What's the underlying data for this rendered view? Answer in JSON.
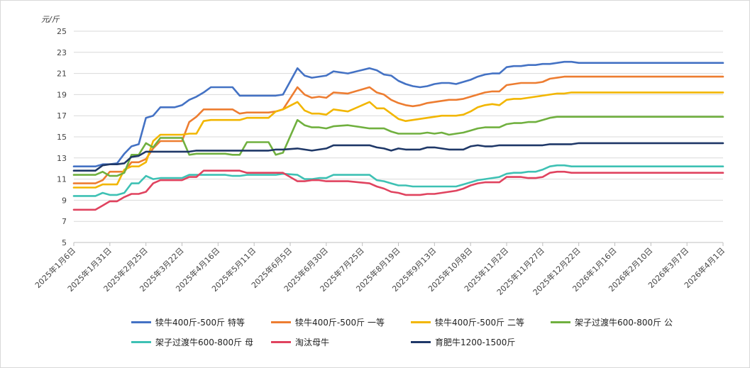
{
  "chart_data": {
    "type": "line",
    "unit_label": "元/斤",
    "ylim": [
      5,
      25
    ],
    "yticks": [
      5,
      7,
      9,
      11,
      13,
      15,
      17,
      19,
      21,
      23,
      25
    ],
    "grid": "horizontal",
    "legend_position": "bottom",
    "x_tick_labels": [
      "2025年1月6日",
      "2025年1月31日",
      "2025年2月25日",
      "2025年3月22日",
      "2025年4月16日",
      "2025年5月11日",
      "2025年6月5日",
      "2025年6月30日",
      "2025年7月25日",
      "2025年8月19日",
      "2025年9月13日",
      "2025年10月8日",
      "2025年11月2日",
      "2025年11月27日",
      "2025年12月22日",
      "2026年1月16日",
      "2026年2月10日",
      "2026年3月7日",
      "2026年4月1日"
    ],
    "x_index": [
      0,
      3,
      4,
      5,
      6,
      7,
      8,
      9,
      10,
      11,
      12,
      14,
      15,
      16,
      17,
      18,
      19,
      21,
      22,
      23,
      24,
      26,
      27,
      28,
      29,
      31,
      32,
      33,
      34,
      35,
      36,
      38,
      41,
      42,
      43,
      44,
      45,
      46,
      47,
      48,
      49,
      50,
      51,
      52,
      53,
      54,
      55,
      56,
      57,
      58,
      59,
      60,
      61,
      62,
      63,
      64,
      65,
      66,
      67,
      68,
      69,
      70,
      71,
      72,
      73,
      74,
      75,
      76,
      77,
      78,
      79,
      80,
      81,
      82,
      83,
      84,
      85,
      86,
      87,
      88,
      89,
      90
    ],
    "series": [
      {
        "name": "犊牛400斤-500斤 特等",
        "color": "#4472c4",
        "values": [
          12.2,
          12.2,
          12.4,
          12.4,
          12.5,
          13.4,
          14.1,
          14.3,
          16.8,
          17.0,
          17.8,
          17.8,
          18.0,
          18.5,
          18.8,
          19.2,
          19.7,
          19.7,
          19.7,
          18.9,
          18.9,
          18.9,
          18.9,
          18.9,
          19.0,
          21.5,
          20.8,
          20.6,
          20.7,
          20.8,
          21.2,
          21.0,
          21.5,
          21.3,
          20.9,
          20.8,
          20.3,
          20.0,
          19.8,
          19.7,
          19.8,
          20.0,
          20.1,
          20.1,
          20.0,
          20.2,
          20.4,
          20.7,
          20.9,
          21.0,
          21.0,
          21.6,
          21.7,
          21.7,
          21.8,
          21.8,
          21.9,
          21.9,
          22.0,
          22.1,
          22.1,
          22.0,
          22.0,
          22.0,
          22.0,
          22.0,
          22.0,
          22.0,
          22.0,
          22.0,
          22.0,
          22.0,
          22.0,
          22.0,
          22.0,
          22.0,
          22.0,
          22.0,
          22.0,
          22.0,
          22.0,
          22.0
        ]
      },
      {
        "name": "犊牛400斤-500斤 一等",
        "color": "#ed7d31",
        "values": [
          10.6,
          10.6,
          10.9,
          11.7,
          11.7,
          11.7,
          12.6,
          12.6,
          12.9,
          13.9,
          14.6,
          14.6,
          14.6,
          16.4,
          16.9,
          17.6,
          17.6,
          17.6,
          17.6,
          17.2,
          17.3,
          17.3,
          17.3,
          17.4,
          17.6,
          19.7,
          19.0,
          18.7,
          18.8,
          18.7,
          19.2,
          19.1,
          19.7,
          19.2,
          19.0,
          18.5,
          18.2,
          18.0,
          17.9,
          18.0,
          18.2,
          18.3,
          18.4,
          18.5,
          18.5,
          18.6,
          18.8,
          19.0,
          19.2,
          19.3,
          19.3,
          19.9,
          20.0,
          20.1,
          20.1,
          20.1,
          20.2,
          20.5,
          20.6,
          20.7,
          20.7,
          20.7,
          20.7,
          20.7,
          20.7,
          20.7,
          20.7,
          20.7,
          20.7,
          20.7,
          20.7,
          20.7,
          20.7,
          20.7,
          20.7,
          20.7,
          20.7,
          20.7,
          20.7,
          20.7,
          20.7,
          20.7
        ]
      },
      {
        "name": "犊牛400斤-500斤 二等",
        "color": "#f2b600",
        "values": [
          10.2,
          10.2,
          10.5,
          10.5,
          10.5,
          11.9,
          12.2,
          12.2,
          12.6,
          14.6,
          15.2,
          15.2,
          15.2,
          15.3,
          15.3,
          16.5,
          16.6,
          16.6,
          16.6,
          16.6,
          16.8,
          16.8,
          16.8,
          17.4,
          17.6,
          18.3,
          17.5,
          17.2,
          17.2,
          17.1,
          17.6,
          17.4,
          18.3,
          17.7,
          17.7,
          17.2,
          16.7,
          16.5,
          16.6,
          16.7,
          16.8,
          16.9,
          17.0,
          17.0,
          17.0,
          17.1,
          17.4,
          17.8,
          18.0,
          18.1,
          18.0,
          18.5,
          18.6,
          18.6,
          18.7,
          18.8,
          18.9,
          19.0,
          19.1,
          19.1,
          19.2,
          19.2,
          19.2,
          19.2,
          19.2,
          19.2,
          19.2,
          19.2,
          19.2,
          19.2,
          19.2,
          19.2,
          19.2,
          19.2,
          19.2,
          19.2,
          19.2,
          19.2,
          19.2,
          19.2,
          19.2,
          19.2
        ]
      },
      {
        "name": "架子过渡牛600-800斤 公",
        "color": "#70b03f",
        "values": [
          11.4,
          11.4,
          11.7,
          11.3,
          11.3,
          11.6,
          13.3,
          13.3,
          14.4,
          14.0,
          14.9,
          14.9,
          14.9,
          13.3,
          13.4,
          13.4,
          13.4,
          13.4,
          13.3,
          13.3,
          14.5,
          14.5,
          14.5,
          13.3,
          13.5,
          16.6,
          16.1,
          15.9,
          15.9,
          15.8,
          16.0,
          16.1,
          15.8,
          15.8,
          15.8,
          15.5,
          15.3,
          15.3,
          15.3,
          15.3,
          15.4,
          15.3,
          15.4,
          15.2,
          15.3,
          15.4,
          15.6,
          15.8,
          15.9,
          15.9,
          15.9,
          16.2,
          16.3,
          16.3,
          16.4,
          16.4,
          16.6,
          16.8,
          16.9,
          16.9,
          16.9,
          16.9,
          16.9,
          16.9,
          16.9,
          16.9,
          16.9,
          16.9,
          16.9,
          16.9,
          16.9,
          16.9,
          16.9,
          16.9,
          16.9,
          16.9,
          16.9,
          16.9,
          16.9,
          16.9,
          16.9,
          16.9
        ]
      },
      {
        "name": "架子过渡牛600-800斤 母",
        "color": "#3ec1b4",
        "values": [
          9.4,
          9.4,
          9.7,
          9.5,
          9.5,
          9.7,
          10.6,
          10.6,
          11.3,
          11.0,
          11.1,
          11.1,
          11.1,
          11.4,
          11.4,
          11.4,
          11.4,
          11.4,
          11.3,
          11.3,
          11.4,
          11.4,
          11.4,
          11.4,
          11.5,
          11.4,
          11.0,
          11.0,
          11.1,
          11.1,
          11.4,
          11.4,
          11.4,
          10.9,
          10.8,
          10.6,
          10.4,
          10.4,
          10.3,
          10.3,
          10.3,
          10.3,
          10.3,
          10.3,
          10.3,
          10.5,
          10.7,
          10.9,
          11.0,
          11.1,
          11.2,
          11.5,
          11.6,
          11.6,
          11.7,
          11.7,
          11.9,
          12.2,
          12.3,
          12.3,
          12.2,
          12.2,
          12.2,
          12.2,
          12.2,
          12.2,
          12.2,
          12.2,
          12.2,
          12.2,
          12.2,
          12.2,
          12.2,
          12.2,
          12.2,
          12.2,
          12.2,
          12.2,
          12.2,
          12.2,
          12.2,
          12.2
        ]
      },
      {
        "name": "淘汰母牛",
        "color": "#e0435f",
        "values": [
          8.1,
          8.1,
          8.5,
          8.9,
          8.9,
          9.3,
          9.6,
          9.6,
          9.8,
          10.6,
          10.9,
          10.9,
          10.9,
          11.2,
          11.2,
          11.8,
          11.8,
          11.8,
          11.8,
          11.8,
          11.6,
          11.6,
          11.6,
          11.6,
          11.6,
          10.8,
          10.8,
          10.9,
          10.9,
          10.8,
          10.8,
          10.8,
          10.6,
          10.3,
          10.1,
          9.8,
          9.7,
          9.5,
          9.5,
          9.5,
          9.6,
          9.6,
          9.7,
          9.8,
          9.9,
          10.1,
          10.4,
          10.6,
          10.7,
          10.7,
          10.7,
          11.2,
          11.2,
          11.2,
          11.1,
          11.1,
          11.2,
          11.6,
          11.7,
          11.7,
          11.6,
          11.6,
          11.6,
          11.6,
          11.6,
          11.6,
          11.6,
          11.6,
          11.6,
          11.6,
          11.6,
          11.6,
          11.6,
          11.6,
          11.6,
          11.6,
          11.6,
          11.6,
          11.6,
          11.6,
          11.6,
          11.6
        ]
      },
      {
        "name": "育肥牛1200-1500斤",
        "color": "#1f3868",
        "values": [
          11.8,
          11.8,
          12.3,
          12.4,
          12.4,
          12.5,
          13.1,
          13.2,
          13.6,
          13.6,
          13.6,
          13.6,
          13.6,
          13.6,
          13.7,
          13.7,
          13.7,
          13.7,
          13.7,
          13.7,
          13.7,
          13.7,
          13.7,
          13.8,
          13.8,
          13.9,
          13.8,
          13.7,
          13.8,
          13.9,
          14.2,
          14.2,
          14.2,
          14.0,
          13.9,
          13.7,
          13.9,
          13.8,
          13.8,
          13.8,
          14.0,
          14.0,
          13.9,
          13.8,
          13.8,
          13.8,
          14.1,
          14.2,
          14.1,
          14.1,
          14.2,
          14.2,
          14.2,
          14.2,
          14.2,
          14.2,
          14.2,
          14.3,
          14.3,
          14.3,
          14.3,
          14.4,
          14.4,
          14.4,
          14.4,
          14.4,
          14.4,
          14.4,
          14.4,
          14.4,
          14.4,
          14.4,
          14.4,
          14.4,
          14.4,
          14.4,
          14.4,
          14.4,
          14.4,
          14.4,
          14.4,
          14.4
        ]
      }
    ]
  }
}
